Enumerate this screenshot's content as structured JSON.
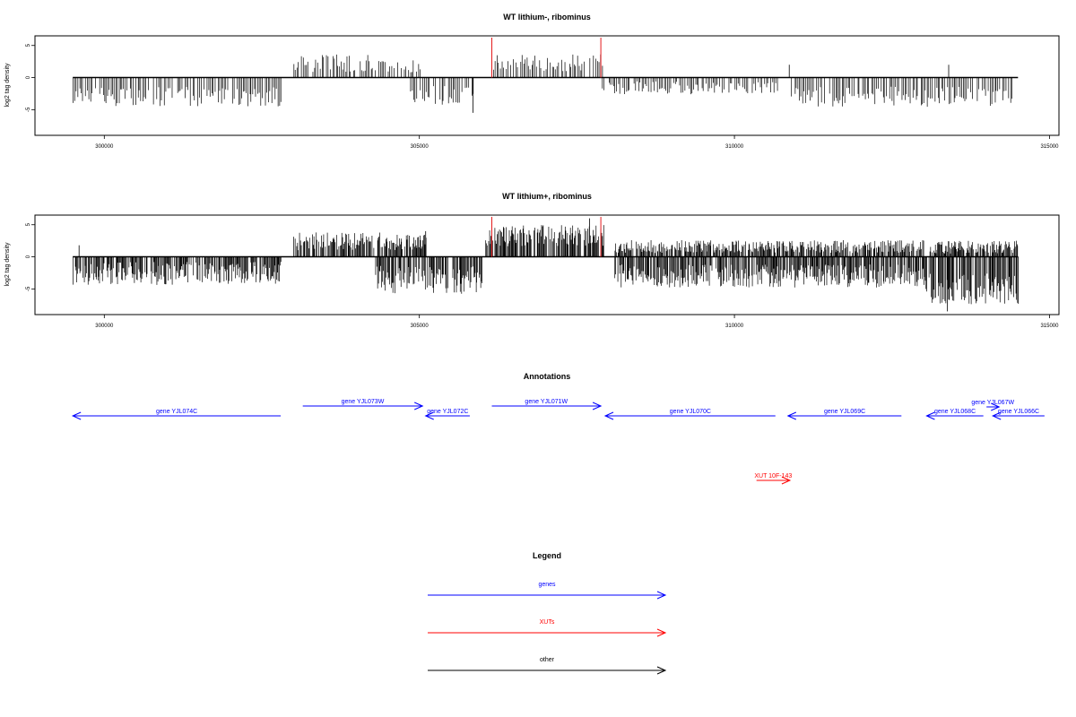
{
  "chart_data": [
    {
      "type": "bar",
      "title": "WT lithium-, ribominus",
      "ylabel": "log2 tag density",
      "xlim": [
        298900,
        315150
      ],
      "ylim": [
        -9,
        6.5
      ],
      "xticks": [
        300000,
        305000,
        310000,
        315000
      ],
      "yticks": [
        -5,
        0,
        5
      ],
      "baseline": [
        299500,
        314500
      ],
      "markers": [
        {
          "x": 306150,
          "color": "#e41a1c"
        },
        {
          "x": 307880,
          "color": "#e41a1c"
        }
      ],
      "profile": {
        "step": 25,
        "segments": [
          {
            "from": 299500,
            "to": 302800,
            "sign": -1,
            "level": 3.0,
            "spread": 1.5
          },
          {
            "from": 303000,
            "to": 304650,
            "sign": 1,
            "level": 2.2,
            "spread": 1.4
          },
          {
            "from": 304700,
            "to": 305000,
            "sign": 1,
            "level": 1.8,
            "spread": 1.0
          },
          {
            "from": 304850,
            "to": 305850,
            "sign": -1,
            "level": 2.8,
            "spread": 1.6
          },
          {
            "from": 306100,
            "to": 307900,
            "sign": 1,
            "level": 2.3,
            "spread": 1.3
          },
          {
            "from": 307900,
            "to": 310700,
            "sign": -1,
            "level": 1.6,
            "spread": 1.0
          },
          {
            "from": 310900,
            "to": 314400,
            "sign": -1,
            "level": 3.0,
            "spread": 1.6
          }
        ],
        "peaks": [
          {
            "x": 305850,
            "y": -5.5
          },
          {
            "x": 310870,
            "y": 2.0
          },
          {
            "x": 313400,
            "y": 2.0
          }
        ]
      }
    },
    {
      "type": "bar",
      "title": "WT lithium+, ribominus",
      "ylabel": "log2 tag density",
      "xlim": [
        298900,
        315150
      ],
      "ylim": [
        -9,
        6.5
      ],
      "xticks": [
        300000,
        305000,
        310000,
        315000
      ],
      "yticks": [
        -5,
        0,
        5
      ],
      "baseline": [
        299500,
        314500
      ],
      "markers": [
        {
          "x": 306150,
          "color": "#e41a1c"
        },
        {
          "x": 307880,
          "color": "#e41a1c"
        }
      ],
      "profile": {
        "step": 12,
        "segments": [
          {
            "from": 299500,
            "to": 302800,
            "sign": -1,
            "level": 2.6,
            "spread": 1.8
          },
          {
            "from": 303000,
            "to": 305100,
            "sign": 1,
            "level": 2.4,
            "spread": 1.4
          },
          {
            "from": 304300,
            "to": 306000,
            "sign": -1,
            "level": 3.6,
            "spread": 2.2
          },
          {
            "from": 306050,
            "to": 307950,
            "sign": 1,
            "level": 3.3,
            "spread": 1.7
          },
          {
            "from": 308100,
            "to": 313000,
            "sign": -1,
            "level": 3.0,
            "spread": 1.8
          },
          {
            "from": 308100,
            "to": 313000,
            "sign": 1,
            "level": 1.6,
            "spread": 1.0
          },
          {
            "from": 313000,
            "to": 314500,
            "sign": -1,
            "level": 5.0,
            "spread": 2.4
          },
          {
            "from": 313100,
            "to": 314500,
            "sign": 1,
            "level": 1.5,
            "spread": 1.0
          }
        ],
        "peaks": [
          {
            "x": 299600,
            "y": 1.8
          },
          {
            "x": 305100,
            "y": 4.0
          },
          {
            "x": 307700,
            "y": 6.0
          },
          {
            "x": 313380,
            "y": -8.5
          }
        ]
      }
    }
  ],
  "annotations": {
    "title": "Annotations",
    "xlim": [
      298900,
      315150
    ],
    "items": [
      {
        "label": "gene YJL074C",
        "start": 302800,
        "end": 299500,
        "row": 0,
        "color": "#0000ff"
      },
      {
        "label": "gene YJL073W",
        "start": 303150,
        "end": 305050,
        "row": 1,
        "color": "#0000ff"
      },
      {
        "label": "gene YJL072C",
        "start": 305800,
        "end": 305100,
        "row": 0,
        "color": "#0000ff"
      },
      {
        "label": "gene YJL071W",
        "start": 306150,
        "end": 307880,
        "row": 1,
        "color": "#0000ff"
      },
      {
        "label": "gene YJL070C",
        "start": 310650,
        "end": 307950,
        "row": 0,
        "color": "#0000ff"
      },
      {
        "label": "gene YJL069C",
        "start": 312650,
        "end": 310850,
        "row": 0,
        "color": "#0000ff"
      },
      {
        "label": "gene YJL068C",
        "start": 313950,
        "end": 313050,
        "row": 0,
        "color": "#0000ff"
      },
      {
        "label": "gene YJL067W",
        "start": 314000,
        "end": 314200,
        "row": 2,
        "color": "#0000ff"
      },
      {
        "label": "gene YJL066C",
        "start": 314920,
        "end": 314100,
        "row": 0,
        "color": "#0000ff"
      },
      {
        "label": "XUT 10F-143",
        "start": 310350,
        "end": 310880,
        "row": 3,
        "color": "#ff0000"
      }
    ]
  },
  "legend": {
    "title": "Legend",
    "items": [
      {
        "label": "genes",
        "color": "#0000ff"
      },
      {
        "label": "XUTs",
        "color": "#ff0000"
      },
      {
        "label": "other",
        "color": "#000000"
      }
    ]
  }
}
